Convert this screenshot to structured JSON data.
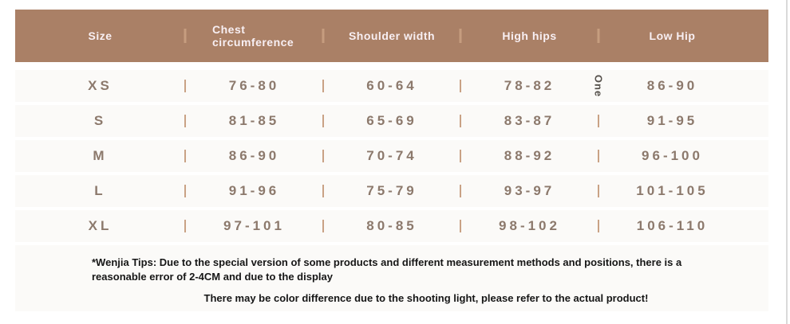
{
  "colors": {
    "header_bg": "#aa8066",
    "header_text": "#f8eff3",
    "row_bg": "#fbfaf8",
    "divider": "#c9a285",
    "data_text": "#8c796c",
    "note_text": "#161616",
    "watermark_text": "#55504b",
    "right_border": "#dadada"
  },
  "chart_data": {
    "type": "table",
    "columns": [
      "Size",
      "Chest circumference",
      "Shoulder width",
      "High hips",
      "Low Hip"
    ],
    "rows": [
      [
        "XS",
        "76-80",
        "60-64",
        "78-82",
        "86-90"
      ],
      [
        "S",
        "81-85",
        "65-69",
        "83-87",
        "91-95"
      ],
      [
        "M",
        "86-90",
        "70-74",
        "88-92",
        "96-100"
      ],
      [
        "L",
        "91-96",
        "75-79",
        "93-97",
        "101-105"
      ],
      [
        "XL",
        "97-101",
        "80-85",
        "98-102",
        "106-110"
      ]
    ],
    "notes": [
      "*Wenjia Tips: Due to the special version of some products and different measurement methods and positions, there is a reasonable error of 2-4CM and due to the display",
      "There may be color difference due to the shooting light, please refer to the actual product!"
    ]
  },
  "watermark": {
    "text": "One"
  },
  "notes": {
    "tip_line1": "*Wenjia Tips: Due to the special version of some products and different measurement methods and positions, there is a",
    "tip_line2": "reasonable error of 2-4CM and due to the display",
    "color_note": "There may be color difference due to the shooting light, please refer to the actual product!"
  }
}
